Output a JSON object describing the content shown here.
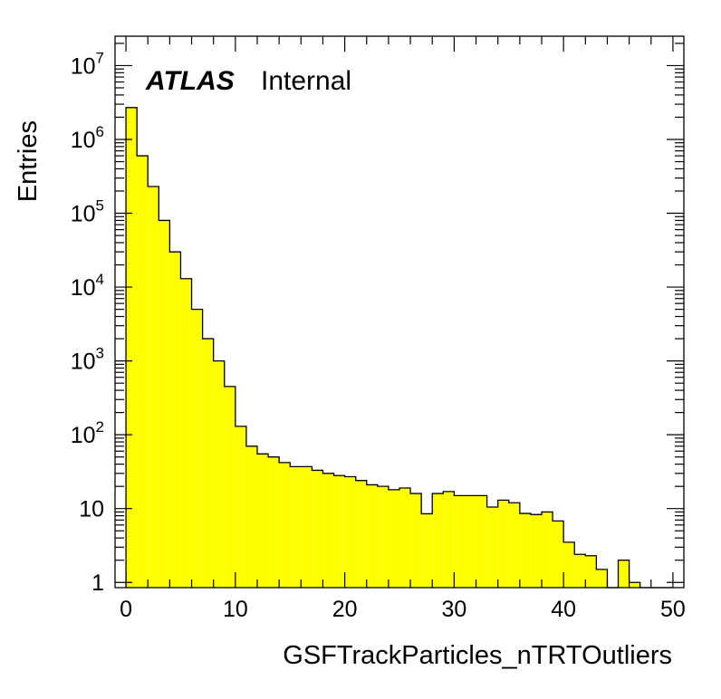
{
  "chart_data": {
    "type": "bar",
    "style": "step-filled-histogram",
    "fill_color": "#ffff00",
    "line_color": "#000000",
    "xlabel": "GSFTrackParticles_nTRTOutliers",
    "ylabel": "Entries",
    "xlim": [
      -1,
      51
    ],
    "ylim": [
      0.85,
      25000000
    ],
    "yscale": "log",
    "grid": false,
    "bin_width": 1,
    "x_ticks": [
      0,
      10,
      20,
      30,
      40,
      50
    ],
    "x_tick_labels": [
      "0",
      "10",
      "20",
      "30",
      "40",
      "50"
    ],
    "y_ticks": [
      1,
      10,
      100,
      1000,
      10000,
      100000,
      1000000,
      10000000
    ],
    "y_tick_labels": [
      {
        "base": "1",
        "exp": ""
      },
      {
        "base": "10",
        "exp": ""
      },
      {
        "base": "10",
        "exp": "2"
      },
      {
        "base": "10",
        "exp": "3"
      },
      {
        "base": "10",
        "exp": "4"
      },
      {
        "base": "10",
        "exp": "5"
      },
      {
        "base": "10",
        "exp": "6"
      },
      {
        "base": "10",
        "exp": "7"
      }
    ],
    "x": [
      0,
      1,
      2,
      3,
      4,
      5,
      6,
      7,
      8,
      9,
      10,
      11,
      12,
      13,
      14,
      15,
      16,
      17,
      18,
      19,
      20,
      21,
      22,
      23,
      24,
      25,
      26,
      27,
      28,
      29,
      30,
      31,
      32,
      33,
      34,
      35,
      36,
      37,
      38,
      39,
      40,
      41,
      42,
      43,
      44,
      45,
      46,
      47,
      48,
      49
    ],
    "values": [
      2700000,
      600000,
      230000,
      80000,
      30000,
      13000,
      5000,
      2000,
      1000,
      450,
      130,
      70,
      55,
      50,
      42,
      37,
      37,
      33,
      30,
      28,
      27,
      24,
      21,
      20,
      18,
      19,
      16,
      8.5,
      16,
      17,
      15,
      15,
      15,
      10.5,
      13,
      12,
      8.6,
      8.3,
      9,
      6.8,
      3.5,
      2.4,
      2.3,
      1.5,
      0,
      2,
      1,
      0,
      0,
      0
    ],
    "annotations": [
      {
        "bold_italic": "ATLAS",
        "normal": "Internal"
      }
    ]
  }
}
